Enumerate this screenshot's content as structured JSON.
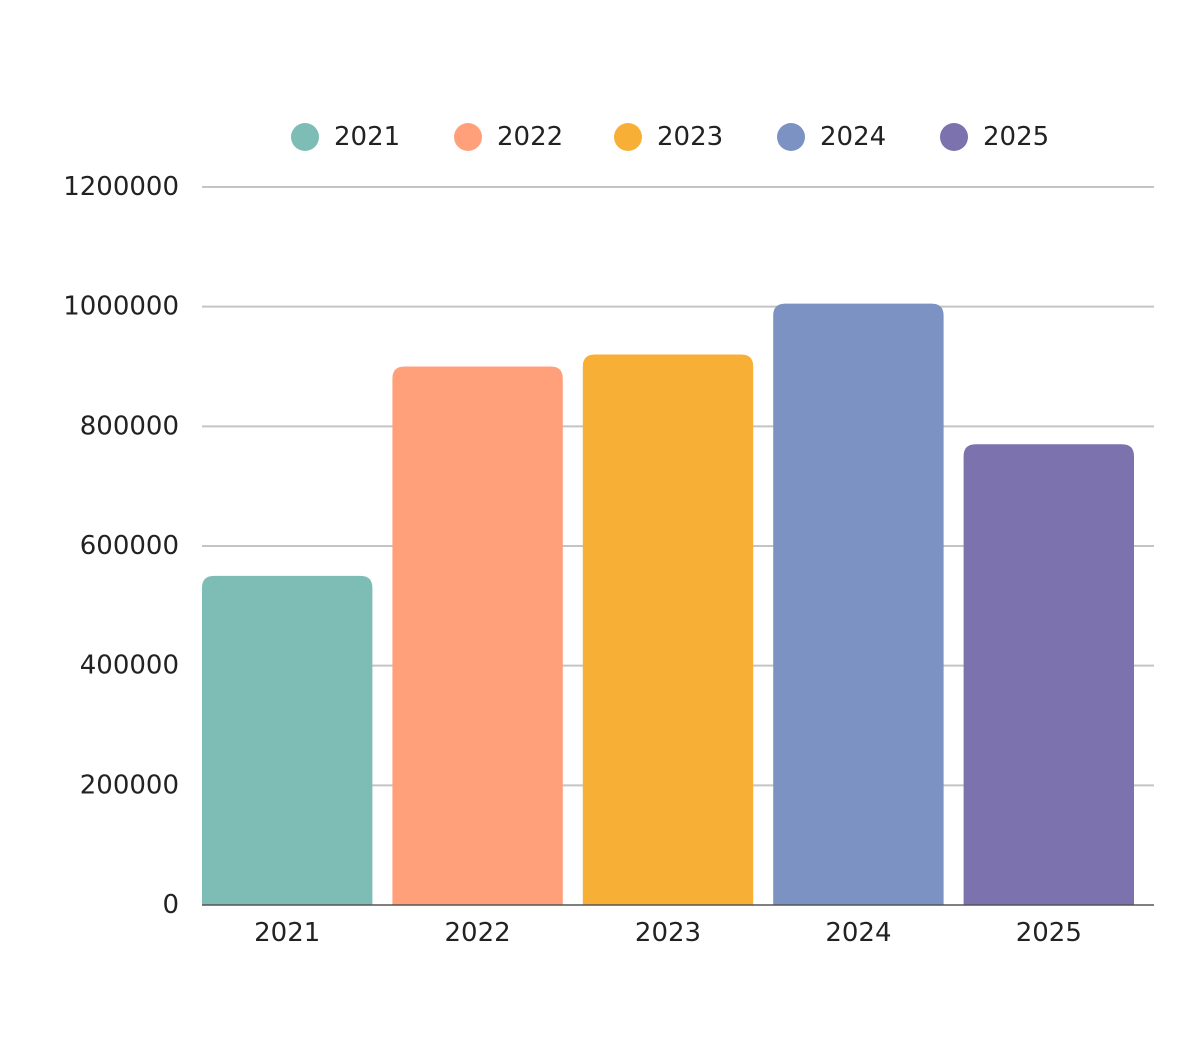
{
  "chart_data": {
    "type": "bar",
    "categories": [
      "2021",
      "2022",
      "2023",
      "2024",
      "2025"
    ],
    "values": [
      550000,
      900000,
      920000,
      1005000,
      770000
    ],
    "colors": [
      "#7dbdb5",
      "#ffa07b",
      "#f8af36",
      "#7c92c2",
      "#7c72ad"
    ],
    "legend": {
      "position": "top",
      "entries": [
        "2021",
        "2022",
        "2023",
        "2024",
        "2025"
      ]
    },
    "ylim": [
      0,
      1200000
    ],
    "yticks": [
      "0",
      "200000",
      "400000",
      "600000",
      "800000",
      "1000000",
      "1200000"
    ],
    "grid": true,
    "grid_color": "#c4c4c4",
    "title": "",
    "xlabel": "",
    "ylabel": ""
  }
}
